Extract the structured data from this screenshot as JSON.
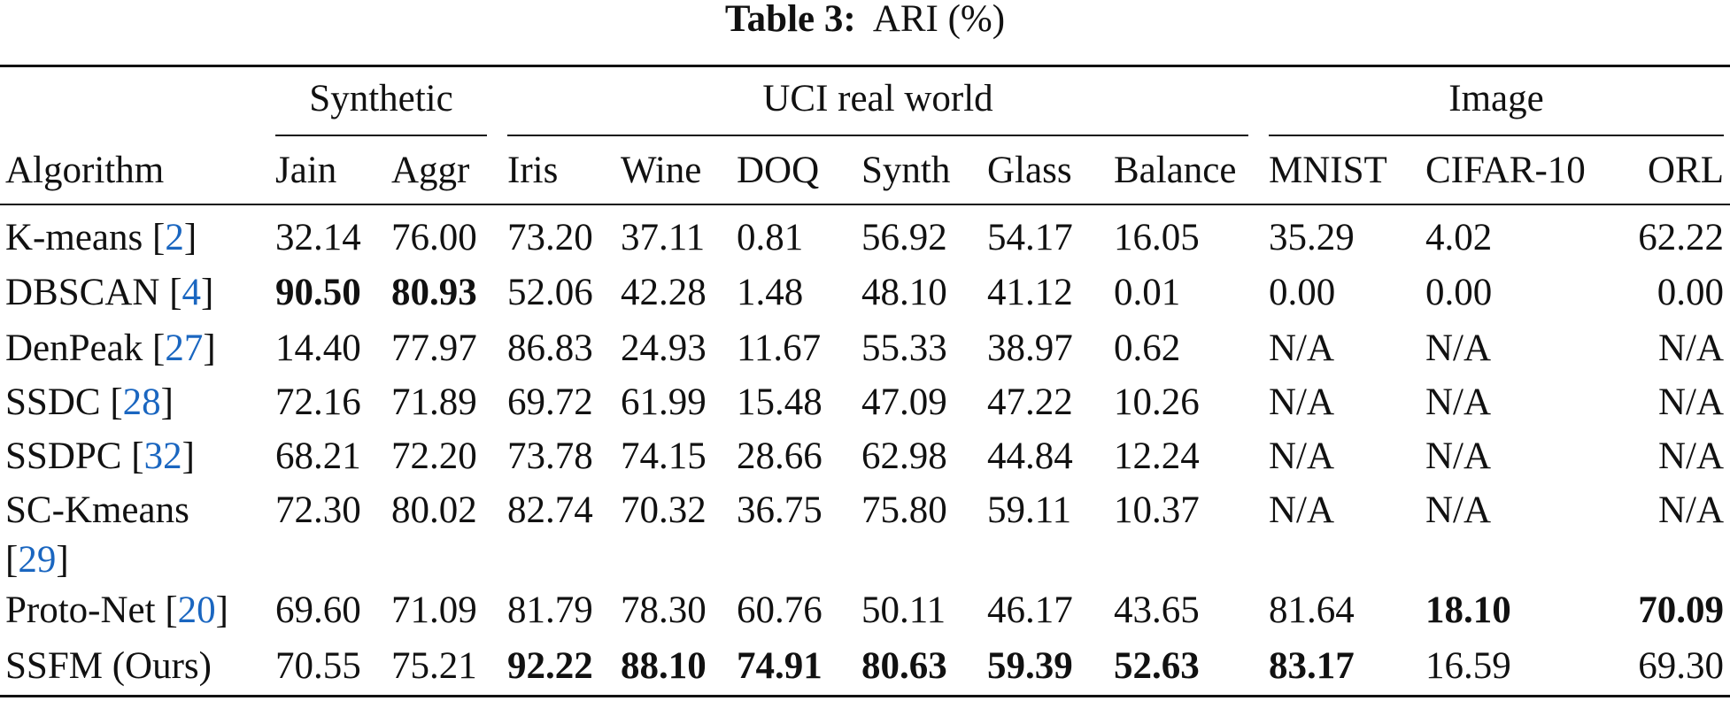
{
  "title": {
    "label": "Table 3:",
    "text": "ARI (%)"
  },
  "table": {
    "cite_brackets": [
      "[",
      "]"
    ],
    "groups": [
      {
        "label": "Synthetic",
        "from": 1,
        "to": 2
      },
      {
        "label": "UCI real world",
        "from": 3,
        "to": 8
      },
      {
        "label": "Image",
        "from": 9,
        "to": 11
      }
    ],
    "columns": [
      "Algorithm",
      "Jain",
      "Aggr",
      "Iris",
      "Wine",
      "DOQ",
      "Synth",
      "Glass",
      "Balance",
      "MNIST",
      "CIFAR-10",
      "ORL"
    ],
    "rows": [
      {
        "algorithm": "K-means",
        "cite": "2",
        "cells": [
          "32.14",
          "76.00",
          "73.20",
          "37.11",
          "0.81",
          "56.92",
          "54.17",
          "16.05",
          "35.29",
          "4.02",
          "62.22"
        ],
        "bold": []
      },
      {
        "algorithm": "DBSCAN",
        "cite": "4",
        "cells": [
          "90.50",
          "80.93",
          "52.06",
          "42.28",
          "1.48",
          "48.10",
          "41.12",
          "0.01",
          "0.00",
          "0.00",
          "0.00"
        ],
        "bold": [
          0,
          1
        ]
      },
      {
        "algorithm": "DenPeak",
        "cite": "27",
        "cells": [
          "14.40",
          "77.97",
          "86.83",
          "24.93",
          "11.67",
          "55.33",
          "38.97",
          "0.62",
          "N/A",
          "N/A",
          "N/A"
        ],
        "bold": []
      },
      {
        "algorithm": "SSDC",
        "cite": "28",
        "cells": [
          "72.16",
          "71.89",
          "69.72",
          "61.99",
          "15.48",
          "47.09",
          "47.22",
          "10.26",
          "N/A",
          "N/A",
          "N/A"
        ],
        "bold": []
      },
      {
        "algorithm": "SSDPC",
        "cite": "32",
        "cells": [
          "68.21",
          "72.20",
          "73.78",
          "74.15",
          "28.66",
          "62.98",
          "44.84",
          "12.24",
          "N/A",
          "N/A",
          "N/A"
        ],
        "bold": []
      },
      {
        "algorithm": "SC-Kmeans",
        "cite": "29",
        "cells": [
          "72.30",
          "80.02",
          "82.74",
          "70.32",
          "36.75",
          "75.80",
          "59.11",
          "10.37",
          "N/A",
          "N/A",
          "N/A"
        ],
        "bold": []
      },
      {
        "algorithm": "Proto-Net",
        "cite": "20",
        "cells": [
          "69.60",
          "71.09",
          "81.79",
          "78.30",
          "60.76",
          "50.11",
          "46.17",
          "43.65",
          "81.64",
          "18.10",
          "70.09"
        ],
        "bold": [
          9,
          10
        ]
      },
      {
        "algorithm": "SSFM (Ours)",
        "cells": [
          "70.55",
          "75.21",
          "92.22",
          "88.10",
          "74.91",
          "80.63",
          "59.39",
          "52.63",
          "83.17",
          "16.59",
          "69.30"
        ],
        "bold": [
          2,
          3,
          4,
          5,
          6,
          7,
          8
        ]
      }
    ]
  }
}
